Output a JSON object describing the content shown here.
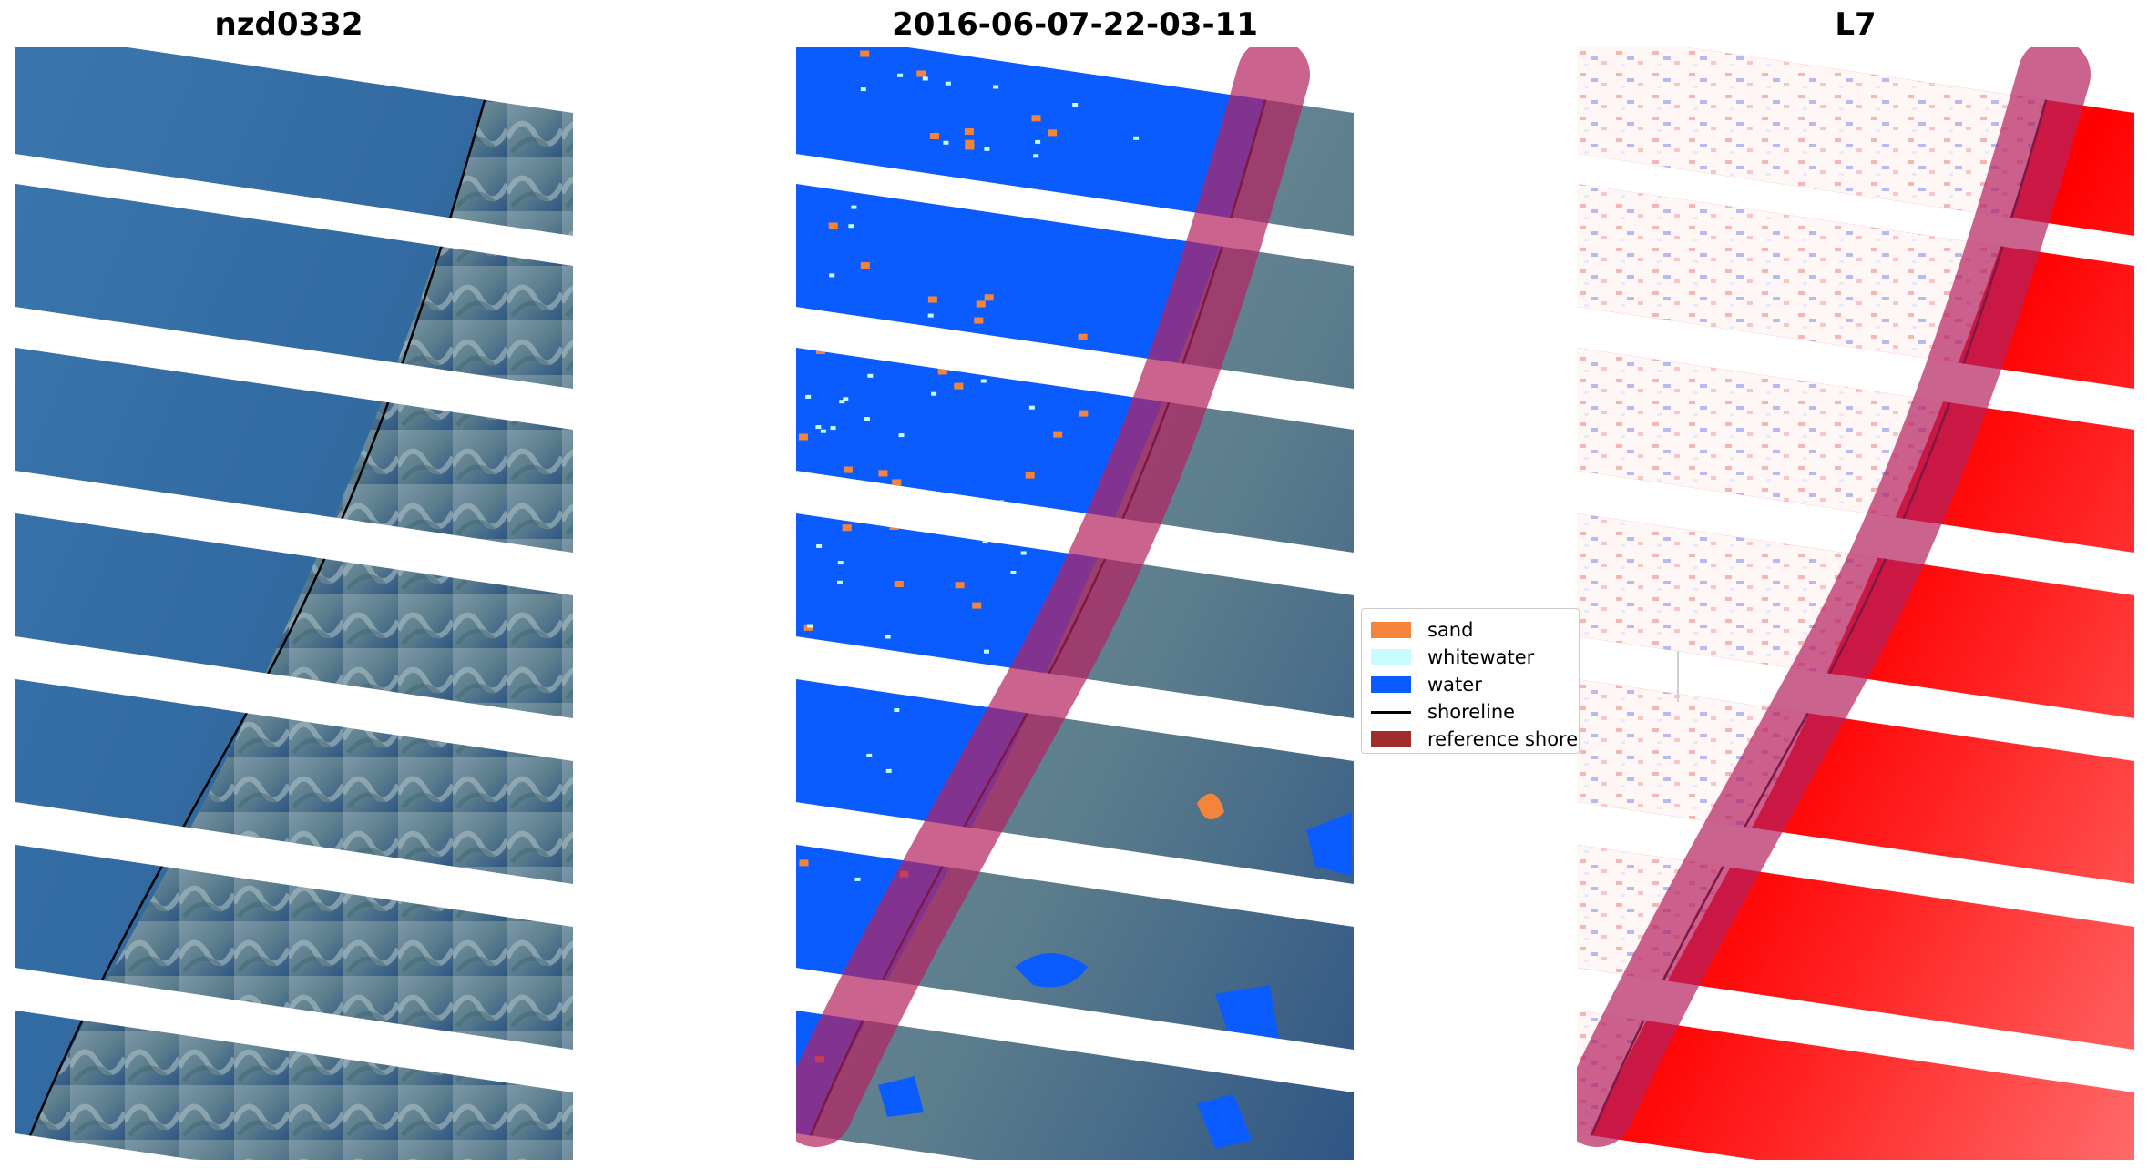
{
  "panels": [
    {
      "title": "nzd0332"
    },
    {
      "title": "2016-06-07-22-03-11"
    },
    {
      "title": "L7"
    }
  ],
  "legend": {
    "items": [
      {
        "label": "sand",
        "color": "#f5843b",
        "kind": "patch"
      },
      {
        "label": "whitewater",
        "color": "#c8fcfc",
        "kind": "patch"
      },
      {
        "label": "water",
        "color": "#0a5cff",
        "kind": "patch"
      },
      {
        "label": "shoreline",
        "color": "#000000",
        "kind": "line"
      },
      {
        "label": "reference shorel",
        "color": "#a02c2c",
        "kind": "patch"
      }
    ]
  },
  "colors": {
    "ocean": "#2e6aa3",
    "land": "#6e8fa0",
    "water_class": "#0a5cff",
    "buffer": "#b5215f",
    "index_positive": "#ff1a1a",
    "index_negative": "#3a3aee",
    "background": "#ffffff"
  }
}
